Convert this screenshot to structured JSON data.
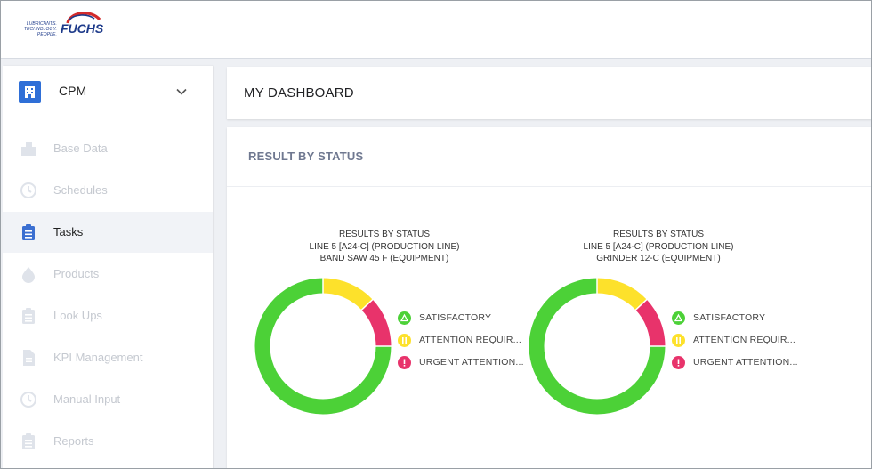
{
  "header": {
    "logo_tagline": [
      "LUBRICANTS.",
      "TECHNOLOGY.",
      "PEOPLE."
    ],
    "logo_brand": "FUCHS"
  },
  "sidebar": {
    "app": {
      "label": "CPM",
      "icon": "building-icon"
    },
    "items": [
      {
        "label": "Base Data",
        "icon": "city-icon",
        "active": false
      },
      {
        "label": "Schedules",
        "icon": "clock-icon",
        "active": false
      },
      {
        "label": "Tasks",
        "icon": "clipboard-icon",
        "active": true
      },
      {
        "label": "Products",
        "icon": "drop-icon",
        "active": false
      },
      {
        "label": "Look Ups",
        "icon": "clipboard-icon",
        "active": false
      },
      {
        "label": "KPI Management",
        "icon": "document-icon",
        "active": false
      },
      {
        "label": "Manual Input",
        "icon": "clock-icon",
        "active": false
      },
      {
        "label": "Reports",
        "icon": "clipboard-icon",
        "active": false
      }
    ]
  },
  "dashboard": {
    "title": "MY DASHBOARD"
  },
  "result_section": {
    "title": "RESULT BY STATUS"
  },
  "colors": {
    "satisfactory": "#4cd137",
    "attention": "#fde12b",
    "urgent": "#e8336b",
    "accent": "#2f6fd7"
  },
  "legend": [
    {
      "label": "SATISFACTORY",
      "icon": "triangle-icon"
    },
    {
      "label": "ATTENTION REQUIR...",
      "icon": "pause-icon"
    },
    {
      "label": "URGENT ATTENTION...",
      "icon": "exclamation-icon"
    }
  ],
  "chart_data": [
    {
      "type": "pie",
      "title": "RESULTS BY STATUS",
      "subtitle": [
        "LINE 5 [A24-C] (PRODUCTION LINE)",
        "BAND SAW 45 F (EQUIPMENT)"
      ],
      "categories": [
        "SATISFACTORY",
        "ATTENTION REQUIR...",
        "URGENT ATTENTION..."
      ],
      "values": [
        75,
        13,
        12
      ],
      "donut": true
    },
    {
      "type": "pie",
      "title": "RESULTS BY STATUS",
      "subtitle": [
        "LINE 5 [A24-C] (PRODUCTION LINE)",
        "GRINDER 12-C (EQUIPMENT)"
      ],
      "categories": [
        "SATISFACTORY",
        "ATTENTION REQUIR...",
        "URGENT ATTENTION..."
      ],
      "values": [
        75,
        13,
        12
      ],
      "donut": true
    }
  ]
}
